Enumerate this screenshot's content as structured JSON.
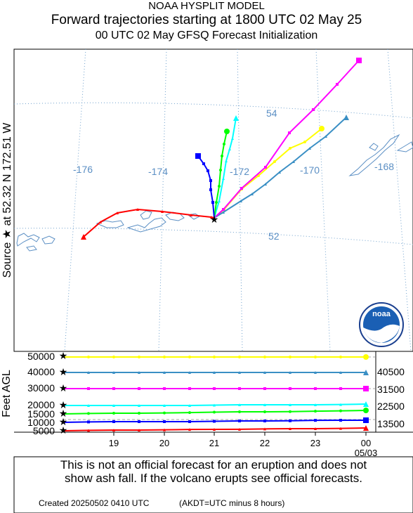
{
  "header": {
    "model": "NOAA HYSPLIT MODEL",
    "title": "Forward trajectories starting at 1800 UTC 02 May 25",
    "subtitle": "00 UTC 02 May    GFSQ  Forecast Initialization"
  },
  "source_label": "Source ★  at    52.32 N  172.51 W",
  "height_axis_label": "Feet AGL",
  "map": {
    "longitude_labels": [
      "-176",
      "-174",
      "-172",
      "-170",
      "-168"
    ],
    "latitude_labels": [
      "54",
      "52"
    ]
  },
  "height_axis": {
    "ticks": [
      "50000",
      "40000",
      "30000",
      "20000",
      "15000",
      "10000",
      "5000"
    ],
    "right_labels": [
      "40500",
      "31500",
      "22500",
      "13500"
    ]
  },
  "time_axis": {
    "ticks": [
      "19",
      "20",
      "21",
      "22",
      "23",
      "00"
    ],
    "date_label": "05/03"
  },
  "logo": {
    "text": "noaa"
  },
  "trajectories": [
    {
      "color": "#ffff00",
      "start_ft": 50000
    },
    {
      "color": "#3a8fc4",
      "start_ft": 40000
    },
    {
      "color": "#ff00ff",
      "start_ft": 30000
    },
    {
      "color": "#00ffff",
      "start_ft": 20000
    },
    {
      "color": "#00ff00",
      "start_ft": 15000
    },
    {
      "color": "#0000ff",
      "start_ft": 10000
    },
    {
      "color": "#ff0000",
      "start_ft": 5000
    }
  ],
  "footer": {
    "disclaimer_line1": "This is not an official forecast for an eruption and does not",
    "disclaimer_line2": "show ash fall. If the volcano erupts see official forecasts.",
    "created": "Created 20250502 0410 UTC",
    "akdt_note": "(AKDT=UTC minus 8 hours)"
  }
}
